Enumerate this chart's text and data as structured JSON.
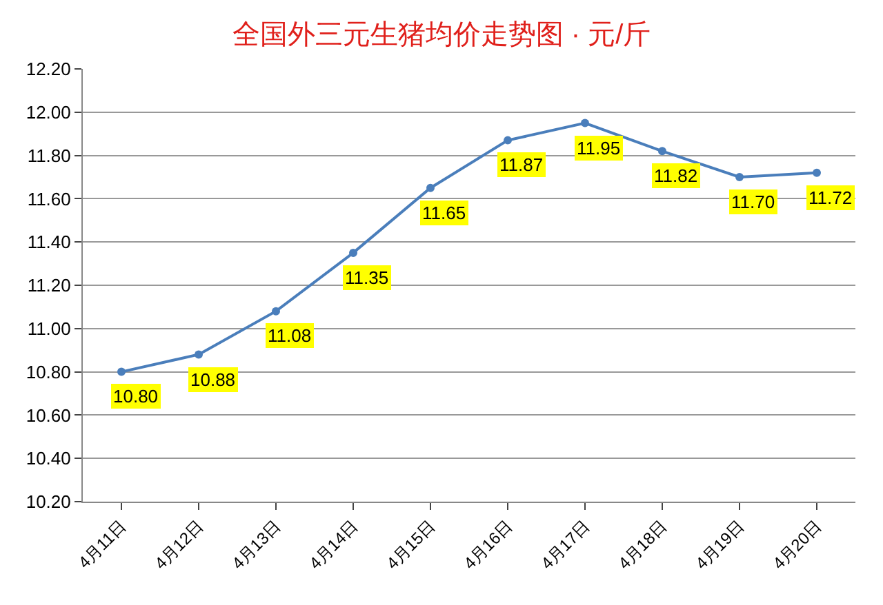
{
  "chart_data": {
    "type": "line",
    "title": "全国外三元生猪均价走势图 · 元/斤",
    "categories": [
      "4月11日",
      "4月12日",
      "4月13日",
      "4月14日",
      "4月15日",
      "4月16日",
      "4月17日",
      "4月18日",
      "4月19日",
      "4月20日"
    ],
    "series": [
      {
        "color": "#4a7ebb",
        "values": [
          10.8,
          10.88,
          11.08,
          11.35,
          11.65,
          11.87,
          11.95,
          11.82,
          11.7,
          11.72
        ],
        "value_labels": [
          "10.80",
          "10.88",
          "11.08",
          "11.35",
          "11.65",
          "11.87",
          "11.95",
          "11.82",
          "11.70",
          "11.72"
        ]
      }
    ],
    "ylim": [
      10.2,
      12.2
    ],
    "yticks": [
      {
        "value": 10.2,
        "label": "10.20"
      },
      {
        "value": 10.4,
        "label": "10.40"
      },
      {
        "value": 10.6,
        "label": "10.60"
      },
      {
        "value": 10.8,
        "label": "10.80"
      },
      {
        "value": 11.0,
        "label": "11.00"
      },
      {
        "value": 11.2,
        "label": "11.20"
      },
      {
        "value": 11.4,
        "label": "11.40"
      },
      {
        "value": 11.6,
        "label": "11.60"
      },
      {
        "value": 11.8,
        "label": "11.80"
      },
      {
        "value": 12.0,
        "label": "12.00"
      },
      {
        "value": 12.2,
        "label": "12.20"
      }
    ],
    "grid": "y",
    "marker": "circle",
    "line_style": "solid"
  }
}
